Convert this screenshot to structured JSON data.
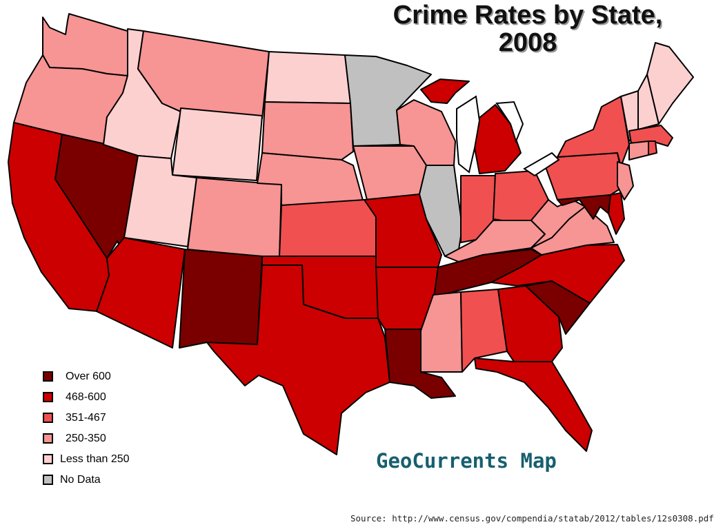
{
  "title": {
    "line1": "Crime Rates by State,",
    "line2": "2008"
  },
  "legend": [
    {
      "key": "c1",
      "label": "Over 600",
      "color": "#7a0000"
    },
    {
      "key": "c2",
      "label": "468-600",
      "color": "#cc0000"
    },
    {
      "key": "c3",
      "label": "351-467",
      "color": "#f05050"
    },
    {
      "key": "c4",
      "label": "250-350",
      "color": "#f79494"
    },
    {
      "key": "c5",
      "label": "Less than 250",
      "color": "#fdd0d0"
    },
    {
      "key": "nd",
      "label": "No Data",
      "color": "#c0c0c0"
    }
  ],
  "states": [
    {
      "id": "WA",
      "class": "c4"
    },
    {
      "id": "OR",
      "class": "c4"
    },
    {
      "id": "CA",
      "class": "c2"
    },
    {
      "id": "NV",
      "class": "c1"
    },
    {
      "id": "ID",
      "class": "c5"
    },
    {
      "id": "MT",
      "class": "c4"
    },
    {
      "id": "WY",
      "class": "c5"
    },
    {
      "id": "UT",
      "class": "c5"
    },
    {
      "id": "AZ",
      "class": "c2"
    },
    {
      "id": "CO",
      "class": "c4"
    },
    {
      "id": "NM",
      "class": "c1"
    },
    {
      "id": "ND",
      "class": "c5"
    },
    {
      "id": "SD",
      "class": "c4"
    },
    {
      "id": "NE",
      "class": "c4"
    },
    {
      "id": "KS",
      "class": "c3"
    },
    {
      "id": "OK",
      "class": "c2"
    },
    {
      "id": "TX",
      "class": "c2"
    },
    {
      "id": "MN",
      "class": "nd"
    },
    {
      "id": "IA",
      "class": "c4"
    },
    {
      "id": "MO",
      "class": "c2"
    },
    {
      "id": "AR",
      "class": "c2"
    },
    {
      "id": "LA",
      "class": "c1"
    },
    {
      "id": "WI",
      "class": "c4"
    },
    {
      "id": "IL",
      "class": "nd"
    },
    {
      "id": "MI",
      "class": "c2"
    },
    {
      "id": "IN",
      "class": "c3"
    },
    {
      "id": "OH",
      "class": "c3"
    },
    {
      "id": "KY",
      "class": "c4"
    },
    {
      "id": "TN",
      "class": "c1"
    },
    {
      "id": "MS",
      "class": "c4"
    },
    {
      "id": "AL",
      "class": "c3"
    },
    {
      "id": "GA",
      "class": "c2"
    },
    {
      "id": "FL",
      "class": "c2"
    },
    {
      "id": "SC",
      "class": "c1"
    },
    {
      "id": "NC",
      "class": "c2"
    },
    {
      "id": "VA",
      "class": "c4"
    },
    {
      "id": "WV",
      "class": "c4"
    },
    {
      "id": "PA",
      "class": "c3"
    },
    {
      "id": "NY",
      "class": "c3"
    },
    {
      "id": "NJ",
      "class": "c4"
    },
    {
      "id": "DE",
      "class": "c2"
    },
    {
      "id": "MD",
      "class": "c1"
    },
    {
      "id": "VT",
      "class": "c5"
    },
    {
      "id": "NH",
      "class": "c5"
    },
    {
      "id": "ME",
      "class": "c5"
    },
    {
      "id": "MA",
      "class": "c3"
    },
    {
      "id": "CT",
      "class": "c4"
    },
    {
      "id": "RI",
      "class": "c3"
    }
  ],
  "caption": "GeoCurrents Map",
  "source": "Source: http://www.census.gov/compendia/statab/2012/tables/12s0308.pdf"
}
